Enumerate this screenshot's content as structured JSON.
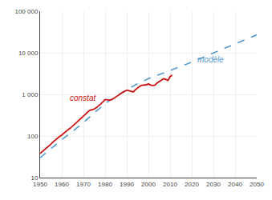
{
  "chart_data": {
    "type": "line",
    "log": "y",
    "grid": true,
    "xlim": [
      1950,
      2050
    ],
    "ylim": [
      10,
      100000
    ],
    "xticks": [
      1950,
      1960,
      1970,
      1980,
      1990,
      2000,
      2010,
      2020,
      2030,
      2040,
      2050
    ],
    "yticks": [
      10,
      100,
      {
        "value": 1000,
        "label": "1 000"
      },
      {
        "value": 10000,
        "label": "10 000"
      },
      {
        "value": 100000,
        "label": "100 000"
      }
    ],
    "series": [
      {
        "name": "modèle",
        "color": "#5599cc",
        "line_style": "dashed",
        "x": [
          1950,
          1955,
          1960,
          1965,
          1970,
          1975,
          1980,
          1985,
          1990,
          1995,
          2000,
          2005,
          2010,
          2015,
          2020,
          2025,
          2030,
          2035,
          2040,
          2045,
          2050
        ],
        "values": [
          30,
          50,
          82,
          130,
          210,
          360,
          600,
          900,
          1300,
          1800,
          2400,
          3000,
          3700,
          4700,
          6000,
          7700,
          9800,
          12500,
          16000,
          21000,
          27000
        ]
      },
      {
        "name": "constat",
        "color": "#cc1111",
        "line_style": "solid",
        "x": [
          1950,
          1951,
          1952,
          1953,
          1954,
          1955,
          1956,
          1957,
          1958,
          1959,
          1960,
          1961,
          1962,
          1963,
          1964,
          1965,
          1966,
          1967,
          1968,
          1969,
          1970,
          1971,
          1972,
          1973,
          1974,
          1975,
          1976,
          1977,
          1978,
          1979,
          1980,
          1981,
          1982,
          1983,
          1984,
          1985,
          1986,
          1987,
          1988,
          1989,
          1990,
          1991,
          1992,
          1993,
          1994,
          1995,
          1996,
          1997,
          1998,
          1999,
          2000,
          2001,
          2002,
          2003,
          2004,
          2005,
          2006,
          2007,
          2008,
          2009,
          2010,
          2011
        ],
        "values": [
          38,
          42,
          46,
          52,
          57,
          64,
          72,
          80,
          90,
          98,
          106,
          118,
          132,
          143,
          155,
          172,
          192,
          212,
          238,
          262,
          295,
          335,
          380,
          415,
          430,
          445,
          480,
          530,
          580,
          660,
          754,
          740,
          730,
          745,
          800,
          855,
          930,
          1020,
          1110,
          1180,
          1270,
          1230,
          1195,
          1145,
          1300,
          1440,
          1570,
          1660,
          1660,
          1700,
          1790,
          1680,
          1640,
          1670,
          1890,
          2020,
          2180,
          2370,
          2300,
          2160,
          2680,
          2900
        ]
      }
    ],
    "annotations": [
      {
        "text": "constat",
        "x": 1963,
        "y": 600,
        "color": "#cc1111"
      },
      {
        "text": "modèle",
        "x": 2022,
        "y": 7000,
        "color": "#5599cc"
      }
    ]
  }
}
